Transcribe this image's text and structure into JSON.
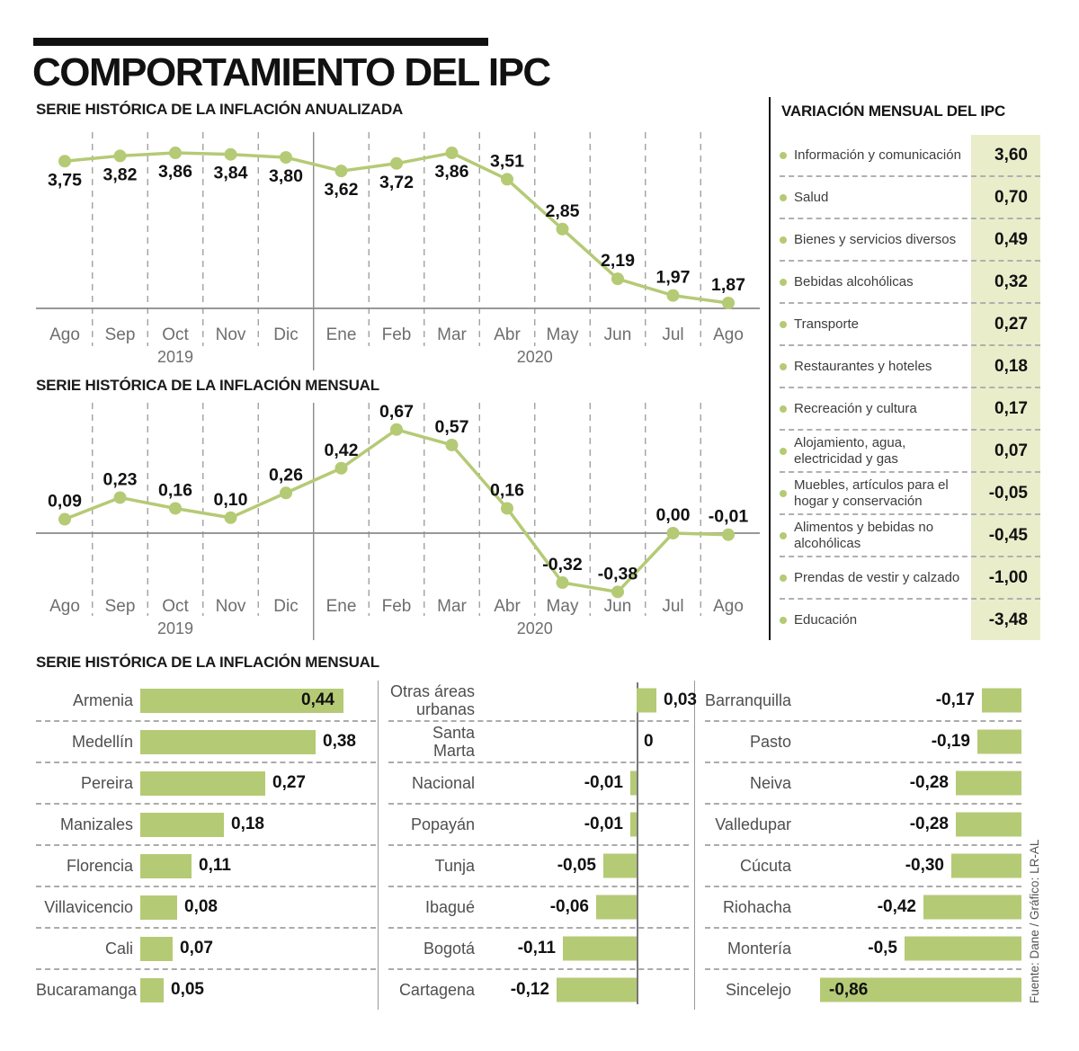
{
  "header": {
    "title": "COMPORTAMIENTO DEL IPC"
  },
  "colors": {
    "accent_green": "#b5ca75",
    "value_column_bg": "#e9edca",
    "grid_gray": "#9a9a9a",
    "baseline_gray": "#8a8a8a",
    "month_text_gray": "#6e6e6e"
  },
  "chart_data": [
    {
      "type": "line",
      "title": "SERIE HISTÓRICA DE LA INFLACIÓN ANUALIZADA",
      "x": [
        "Ago",
        "Sep",
        "Oct",
        "Nov",
        "Dic",
        "Ene",
        "Feb",
        "Mar",
        "Abr",
        "May",
        "Jun",
        "Jul",
        "Ago"
      ],
      "year_groups": [
        {
          "label": "2019",
          "months": 5
        },
        {
          "label": "2020",
          "months": 8
        }
      ],
      "values": [
        3.75,
        3.82,
        3.86,
        3.84,
        3.8,
        3.62,
        3.72,
        3.86,
        3.51,
        2.85,
        2.19,
        1.97,
        1.87
      ],
      "value_labels": [
        "3,75",
        "3,82",
        "3,86",
        "3,84",
        "3,80",
        "3,62",
        "3,72",
        "3,86",
        "3,51",
        "2,85",
        "2,19",
        "1,97",
        "1,87"
      ],
      "label_side": [
        "below",
        "below",
        "below",
        "below",
        "below",
        "below",
        "below",
        "below",
        "above",
        "above",
        "above",
        "above",
        "above"
      ],
      "ylim": [
        1.8,
        4.1
      ],
      "grid": "dashed-vertical-month-separators",
      "legend": "none"
    },
    {
      "type": "line",
      "title": "SERIE HISTÓRICA DE LA INFLACIÓN MENSUAL",
      "x": [
        "Ago",
        "Sep",
        "Oct",
        "Nov",
        "Dic",
        "Ene",
        "Feb",
        "Mar",
        "Abr",
        "May",
        "Jun",
        "Jul",
        "Ago"
      ],
      "year_groups": [
        {
          "label": "2019",
          "months": 5
        },
        {
          "label": "2020",
          "months": 8
        }
      ],
      "values": [
        0.09,
        0.23,
        0.16,
        0.1,
        0.26,
        0.42,
        0.67,
        0.57,
        0.16,
        -0.32,
        -0.38,
        0.0,
        -0.01
      ],
      "value_labels": [
        "0,09",
        "0,23",
        "0,16",
        "0,10",
        "0,26",
        "0,42",
        "0,67",
        "0,57",
        "0,16",
        "-0,32",
        "-0,38",
        "0,00",
        "-0,01"
      ],
      "label_side": [
        "above",
        "above",
        "above",
        "above",
        "above",
        "above",
        "above",
        "above",
        "above",
        "above",
        "above",
        "above",
        "above"
      ],
      "ylim": [
        -0.55,
        0.85
      ],
      "baseline": 0,
      "grid": "dashed-vertical-month-separators",
      "legend": "none"
    },
    {
      "type": "bar",
      "title": "SERIE HISTÓRICA DE LA INFLACIÓN MENSUAL",
      "orientation": "horizontal",
      "columns": [
        {
          "categories": [
            "Armenia",
            "Medellín",
            "Pereira",
            "Manizales",
            "Florencia",
            "Villavicencio",
            "Cali",
            "Bucaramanga"
          ],
          "values": [
            0.44,
            0.38,
            0.27,
            0.18,
            0.11,
            0.08,
            0.07,
            0.05
          ]
        },
        {
          "categories": [
            "Otras áreas urbanas",
            "Santa Marta",
            "Nacional",
            "Popayán",
            "Tunja",
            "Ibagué",
            "Bogotá",
            "Cartagena"
          ],
          "values": [
            0.03,
            0,
            -0.01,
            -0.01,
            -0.05,
            -0.06,
            -0.11,
            -0.12
          ]
        },
        {
          "categories": [
            "Barranquilla",
            "Pasto",
            "Neiva",
            "Valledupar",
            "Cúcuta",
            "Riohacha",
            "Montería",
            "Sincelejo"
          ],
          "values": [
            -0.17,
            -0.19,
            -0.28,
            -0.28,
            -0.3,
            -0.42,
            -0.5,
            -0.86
          ]
        }
      ]
    }
  ],
  "variation_panel": {
    "title": "VARIACIÓN MENSUAL DEL IPC",
    "items": [
      {
        "label": "Información y comunicación",
        "value": "3,60"
      },
      {
        "label": "Salud",
        "value": "0,70"
      },
      {
        "label": "Bienes y servicios diversos",
        "value": "0,49"
      },
      {
        "label": "Bebidas alcohólicas",
        "value": "0,32"
      },
      {
        "label": "Transporte",
        "value": "0,27"
      },
      {
        "label": "Restaurantes y hoteles",
        "value": "0,18"
      },
      {
        "label": "Recreación y cultura",
        "value": "0,17"
      },
      {
        "label": "Alojamiento, agua, electricidad y gas",
        "value": "0,07"
      },
      {
        "label": "Muebles, artículos para el hogar y conservación",
        "value": "-0,05"
      },
      {
        "label": "Alimentos y bebidas no alcohólicas",
        "value": "-0,45"
      },
      {
        "label": "Prendas de vestir y calzado",
        "value": "-1,00"
      },
      {
        "label": "Educación",
        "value": "-3,48"
      }
    ]
  },
  "city_section": {
    "title": "SERIE HISTÓRICA DE LA INFLACIÓN MENSUAL",
    "columns": [
      {
        "items": [
          {
            "label": "Armenia",
            "value": 0.44,
            "display": "0,44"
          },
          {
            "label": "Medellín",
            "value": 0.38,
            "display": "0,38"
          },
          {
            "label": "Pereira",
            "value": 0.27,
            "display": "0,27"
          },
          {
            "label": "Manizales",
            "value": 0.18,
            "display": "0,18"
          },
          {
            "label": "Florencia",
            "value": 0.11,
            "display": "0,11"
          },
          {
            "label": "Villavicencio",
            "value": 0.08,
            "display": "0,08"
          },
          {
            "label": "Cali",
            "value": 0.07,
            "display": "0,07"
          },
          {
            "label": "Bucaramanga",
            "value": 0.05,
            "display": "0,05"
          }
        ]
      },
      {
        "items": [
          {
            "label": "Otras áreas urbanas",
            "value": 0.03,
            "display": "0,03"
          },
          {
            "label": "Santa Marta",
            "value": 0,
            "display": "0"
          },
          {
            "label": "Nacional",
            "value": -0.01,
            "display": "-0,01"
          },
          {
            "label": "Popayán",
            "value": -0.01,
            "display": "-0,01"
          },
          {
            "label": "Tunja",
            "value": -0.05,
            "display": "-0,05"
          },
          {
            "label": "Ibagué",
            "value": -0.06,
            "display": "-0,06"
          },
          {
            "label": "Bogotá",
            "value": -0.11,
            "display": "-0,11"
          },
          {
            "label": "Cartagena",
            "value": -0.12,
            "display": "-0,12"
          }
        ]
      },
      {
        "items": [
          {
            "label": "Barranquilla",
            "value": -0.17,
            "display": "-0,17"
          },
          {
            "label": "Pasto",
            "value": -0.19,
            "display": "-0,19"
          },
          {
            "label": "Neiva",
            "value": -0.28,
            "display": "-0,28"
          },
          {
            "label": "Valledupar",
            "value": -0.28,
            "display": "-0,28"
          },
          {
            "label": "Cúcuta",
            "value": -0.3,
            "display": "-0,30"
          },
          {
            "label": "Riohacha",
            "value": -0.42,
            "display": "-0,42"
          },
          {
            "label": "Montería",
            "value": -0.5,
            "display": "-0,5"
          },
          {
            "label": "Sincelejo",
            "value": -0.86,
            "display": "-0,86"
          }
        ]
      }
    ]
  },
  "source": {
    "credit": "Fuente: Dane / Gráfico: LR-AL"
  }
}
